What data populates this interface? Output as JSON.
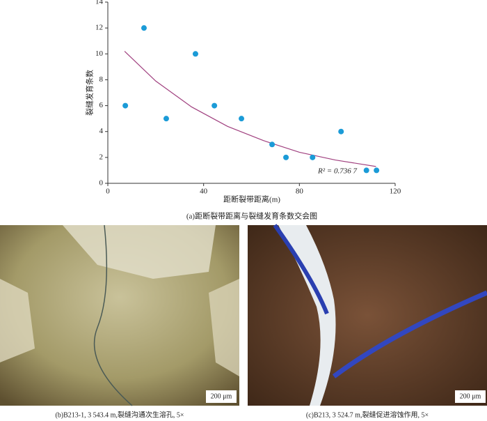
{
  "chart_data": {
    "type": "scatter",
    "x_label": "距断裂带距离(m)",
    "y_label": "裂缝发育条数",
    "x": [
      7.3,
      15.1,
      24.4,
      36.6,
      44.5,
      55.8,
      68.6,
      74.4,
      85.5,
      97.4,
      108,
      112.2
    ],
    "values": [
      6,
      12,
      5,
      10,
      6,
      5,
      3,
      2,
      2,
      4,
      1,
      1
    ],
    "color": "#1b9bd7",
    "fit_x": [
      7,
      20,
      35,
      50,
      65,
      80,
      95,
      112
    ],
    "fit_values": [
      10.2,
      7.9,
      5.9,
      4.4,
      3.3,
      2.4,
      1.8,
      1.3
    ],
    "fit_color": "#a0407f",
    "annotation": "R² = 0.736 7",
    "xlim": [
      0,
      120
    ],
    "xticks": [
      0,
      40,
      80,
      120
    ],
    "ylim": [
      0,
      14
    ],
    "yticks": [
      0,
      2,
      4,
      6,
      8,
      10,
      12,
      14
    ],
    "caption": "(a)距断裂带距离与裂缝发育条数交会图"
  },
  "photos": [
    {
      "scale_bar": "200 μm",
      "caption": "(b)B213-1, 3 543.4 m,裂缝沟通次生溶孔, 5×"
    },
    {
      "scale_bar": "200 μm",
      "caption": "(c)B213, 3 524.7 m,裂缝促进溶蚀作用, 5×"
    }
  ]
}
